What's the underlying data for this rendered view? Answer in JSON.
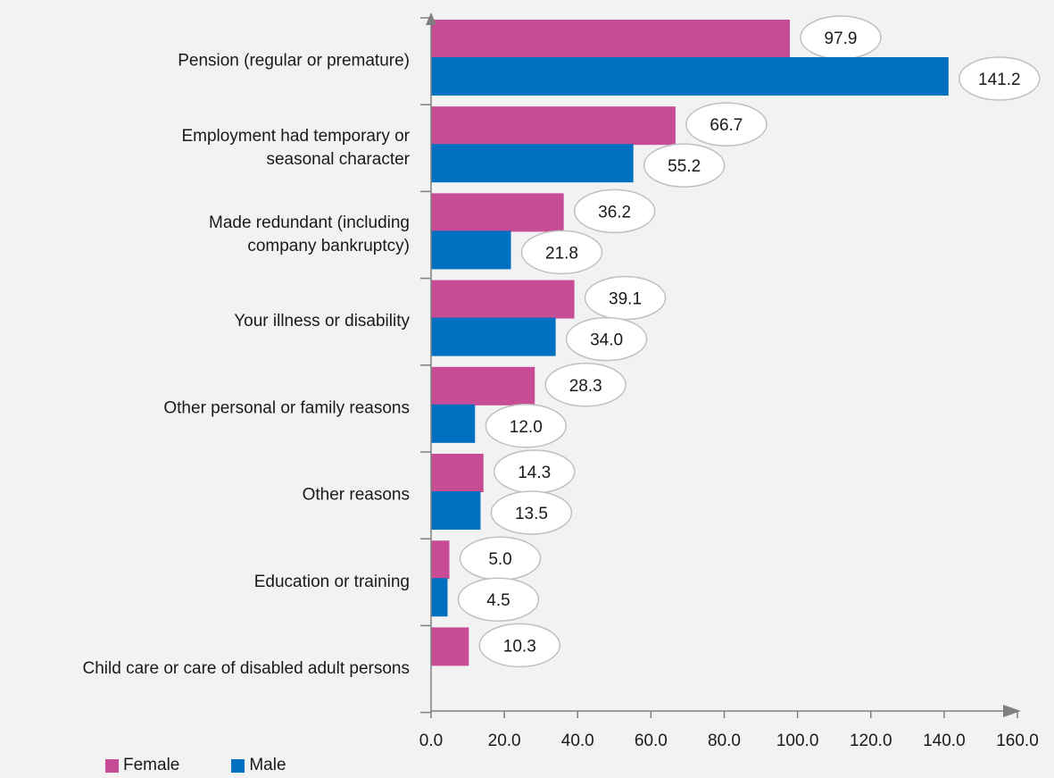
{
  "chart_data": {
    "type": "bar",
    "orientation": "horizontal",
    "categories": [
      "Pension (regular or premature)",
      "Employment had temporary or seasonal character",
      "Made redundant (including company bankruptcy)",
      "Your illness or disability",
      "Other personal or family reasons",
      "Other reasons",
      "Education or training",
      "Child care or care of disabled adult persons"
    ],
    "category_lines": [
      [
        "Pension (regular or premature)"
      ],
      [
        "Employment had temporary or",
        "seasonal character"
      ],
      [
        "Made redundant (including",
        "company bankruptcy)"
      ],
      [
        "Your illness or disability"
      ],
      [
        "Other personal or family reasons"
      ],
      [
        "Other reasons"
      ],
      [
        "Education or training"
      ],
      [
        "Child care or care of disabled adult persons"
      ]
    ],
    "series": [
      {
        "name": "Female",
        "color": "#c84b96",
        "values": [
          97.9,
          66.7,
          36.2,
          39.1,
          28.3,
          14.3,
          5.0,
          10.3
        ]
      },
      {
        "name": "Male",
        "color": "#0070c0",
        "values": [
          141.2,
          55.2,
          21.8,
          34.0,
          12.0,
          13.5,
          4.5,
          null
        ]
      }
    ],
    "xlim": [
      0,
      160
    ],
    "xticks": [
      "0.0",
      "20.0",
      "40.0",
      "60.0",
      "80.0",
      "100.0",
      "120.0",
      "140.0",
      "160.0"
    ],
    "title": "",
    "xlabel": "",
    "ylabel": "",
    "grid": false,
    "legend": "bottom-left"
  },
  "legend": {
    "items": [
      {
        "label": "Female",
        "color": "#c84b96"
      },
      {
        "label": "Male",
        "color": "#0070c0"
      }
    ]
  }
}
